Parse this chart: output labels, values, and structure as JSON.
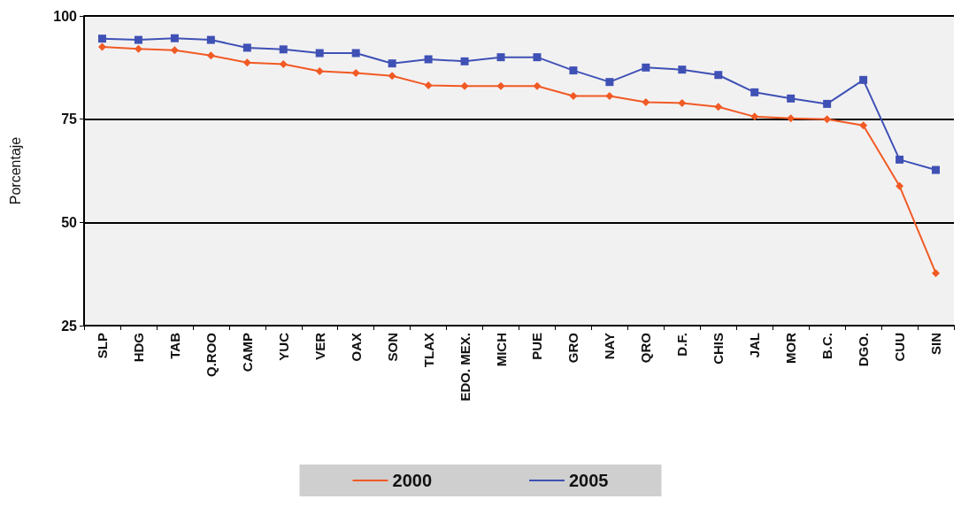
{
  "chart_data": {
    "type": "line",
    "ylabel": "Porcentaje",
    "categories": [
      "SLP",
      "HDG",
      "TAB",
      "Q.ROO",
      "CAMP",
      "YUC",
      "VER",
      "OAX",
      "SON",
      "TLAX",
      "EDO. MEX.",
      "MICH",
      "PUE",
      "GRO",
      "NAY",
      "QRO",
      "D.F.",
      "CHIS",
      "JAL",
      "MOR",
      "B.C.",
      "DGO.",
      "CUU",
      "SIN"
    ],
    "series": [
      {
        "name": "2000",
        "color": "#f15a24",
        "marker": "diamond",
        "values": [
          92.5,
          92,
          91.7,
          90.4,
          88.7,
          88.3,
          86.6,
          86.2,
          85.5,
          83.2,
          83,
          83,
          83,
          80.6,
          80.6,
          79.1,
          78.9,
          78,
          75.6,
          75.2,
          75,
          73.5,
          58.8,
          37.7
        ]
      },
      {
        "name": "2005",
        "color": "#3f51b5",
        "marker": "square",
        "values": [
          94.5,
          94.2,
          94.6,
          94.2,
          92.3,
          91.9,
          91,
          91,
          88.5,
          89.5,
          89,
          90,
          90,
          86.8,
          84,
          87.5,
          87,
          85.7,
          81.5,
          80,
          78.7,
          84.5,
          65.2,
          62.7
        ]
      }
    ],
    "ylim": [
      25,
      100
    ],
    "yticks": [
      25,
      50,
      75,
      100
    ],
    "grid": "y",
    "legend": "bottom",
    "line_style": "solid"
  }
}
